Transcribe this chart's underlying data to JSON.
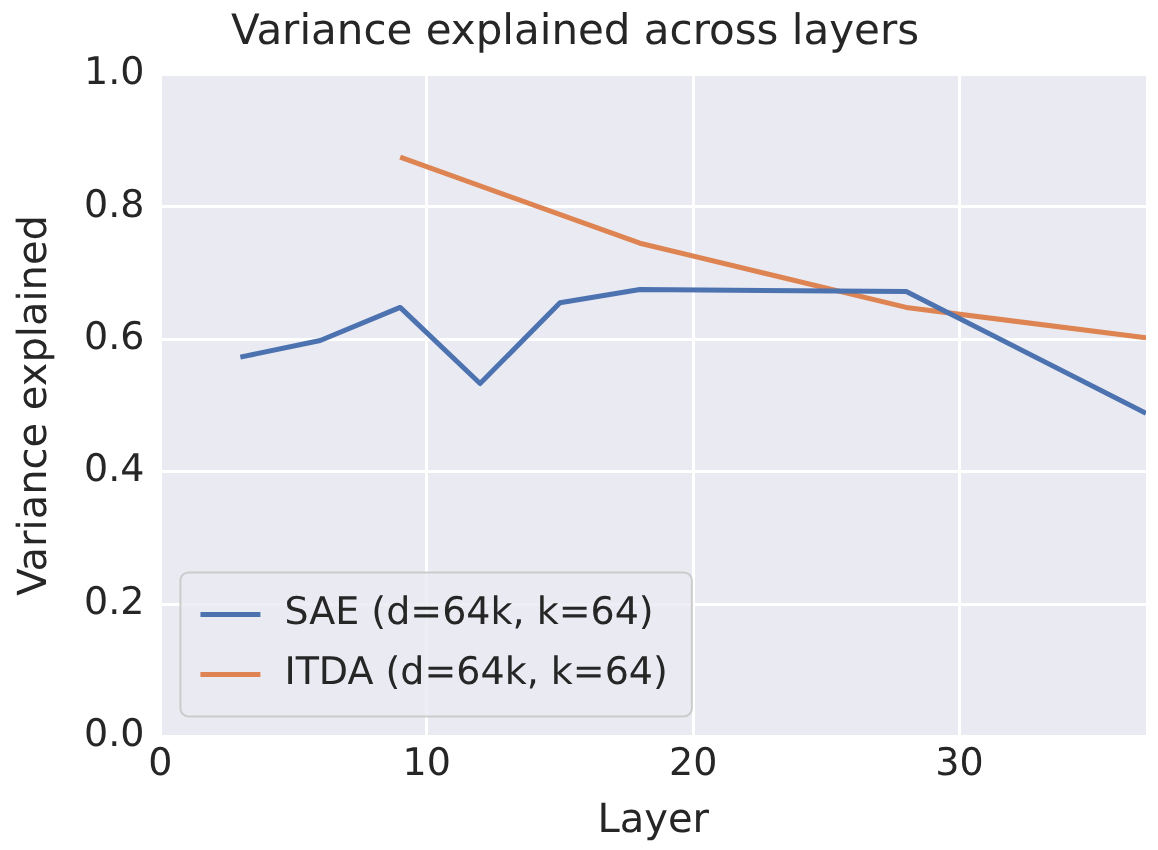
{
  "chart_data": {
    "type": "line",
    "title": "Variance explained across layers",
    "xlabel": "Layer",
    "ylabel": "Variance explained",
    "xlim": [
      0,
      37
    ],
    "xticks": [
      0,
      10,
      20,
      30
    ],
    "ylim": [
      0,
      1
    ],
    "yticks": [
      {
        "value": 0,
        "label": "0.0"
      },
      {
        "value": 0.2,
        "label": "0.2"
      },
      {
        "value": 0.4,
        "label": "0.4"
      },
      {
        "value": 0.6,
        "label": "0.6"
      },
      {
        "value": 0.8,
        "label": "0.8"
      },
      {
        "value": 1,
        "label": "1.0"
      }
    ],
    "grid": true,
    "legend": "bottom left",
    "marker": "none",
    "line_style": "solid",
    "series": [
      {
        "name": "SAE (d=64k, k=64)",
        "color": "#4c72b0",
        "x": [
          3,
          6,
          9,
          12,
          15,
          18,
          28,
          37
        ],
        "values": [
          0.573,
          0.598,
          0.648,
          0.533,
          0.655,
          0.675,
          0.672,
          0.488
        ]
      },
      {
        "name": "ITDA (d=64k, k=64)",
        "color": "#dd8452",
        "x": [
          9,
          18,
          28,
          37
        ],
        "values": [
          0.875,
          0.745,
          0.648,
          0.602
        ]
      }
    ]
  }
}
